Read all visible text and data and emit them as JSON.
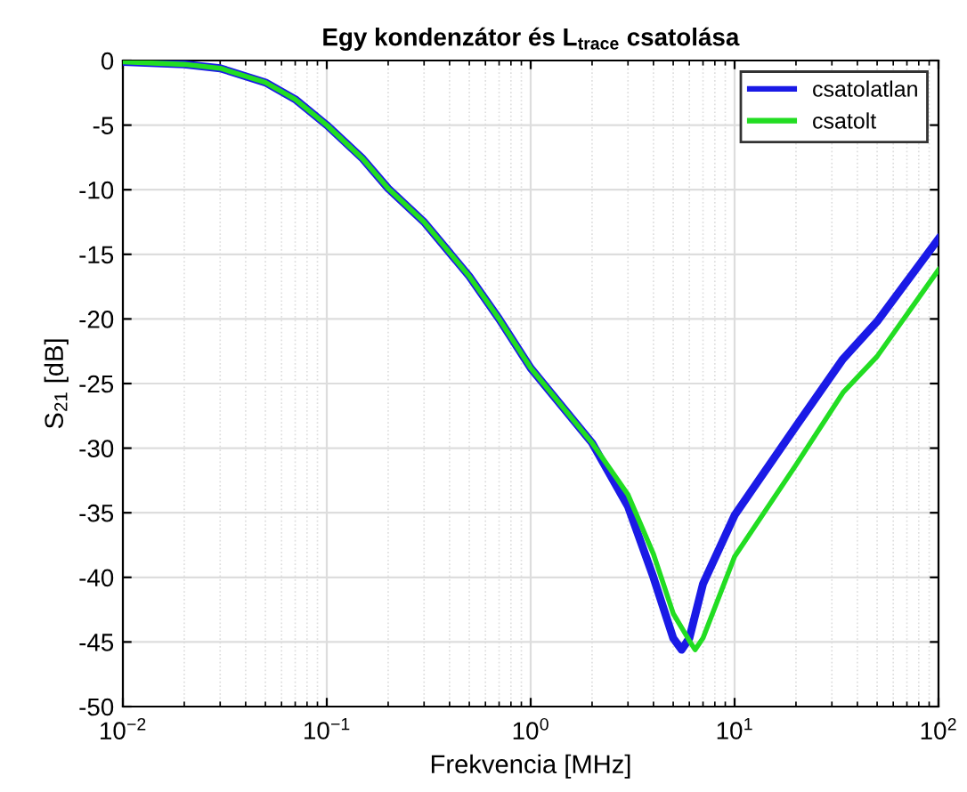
{
  "chart_data": {
    "type": "line",
    "title": "Egy kondenzátor és L$_{trace}$ csatolása",
    "xlabel": "Frekvencia [MHz]",
    "ylabel": "S$_{21}$ [dB]",
    "log": "x",
    "xlim": [
      0.01,
      100
    ],
    "xticks": [
      {
        "value": 0.01,
        "label": "10$^{−2}$"
      },
      {
        "value": 0.1,
        "label": "10$^{−1}$"
      },
      {
        "value": 1,
        "label": "10$^{0}$"
      },
      {
        "value": 10,
        "label": "10$^{1}$"
      },
      {
        "value": 100,
        "label": "10$^{2}$"
      }
    ],
    "ylim": [
      -50,
      0
    ],
    "yticks": [
      -50,
      -45,
      -40,
      -35,
      -30,
      -25,
      -20,
      -15,
      -10,
      -5,
      0
    ],
    "grid": true,
    "legend": "top right",
    "line_style": "solid",
    "marker": "none",
    "series": [
      {
        "name": "csatolatlan",
        "color": "#1a1ae6",
        "x": [
          0.01,
          0.02,
          0.03,
          0.05,
          0.07,
          0.1,
          0.15,
          0.2,
          0.3,
          0.5,
          0.7,
          1,
          2,
          3,
          4,
          5,
          5.5,
          6,
          7,
          10,
          20,
          34,
          50,
          100
        ],
        "values": [
          -0.1,
          -0.3,
          -0.6,
          -1.7,
          -3,
          -5,
          -7.6,
          -9.9,
          -12.5,
          -16.7,
          -20,
          -23.8,
          -29.6,
          -34.5,
          -40,
          -44.7,
          -45.6,
          -44.7,
          -40.5,
          -35.2,
          -28.3,
          -23.1,
          -20.2,
          -13.8
        ]
      },
      {
        "name": "csatolt",
        "color": "#22dd22",
        "x": [
          0.01,
          0.02,
          0.03,
          0.05,
          0.07,
          0.1,
          0.15,
          0.2,
          0.3,
          0.5,
          0.7,
          1,
          2,
          3,
          4,
          5,
          6,
          6.4,
          7,
          10,
          20,
          34,
          50,
          100
        ],
        "values": [
          -0.1,
          -0.3,
          -0.6,
          -1.7,
          -3,
          -5,
          -7.6,
          -9.9,
          -12.5,
          -16.7,
          -20,
          -23.8,
          -29.6,
          -33.6,
          -38.2,
          -42.8,
          -44.9,
          -45.6,
          -44.7,
          -38.4,
          -31.3,
          -25.7,
          -22.9,
          -16.2
        ]
      }
    ]
  }
}
